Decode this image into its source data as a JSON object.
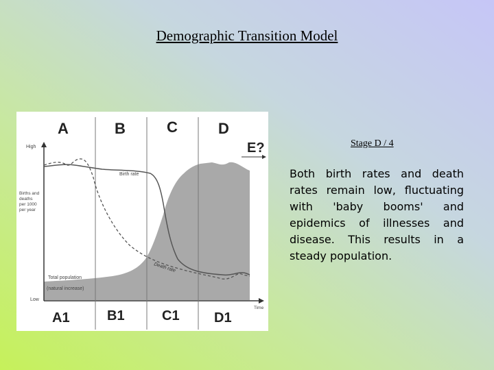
{
  "slide": {
    "title": "Demographic Transition Model",
    "stage_label": "Stage D / 4",
    "description": "Both birth rates and death rates remain low, fluctuating with 'baby booms' and epidemics of illnesses and disease. This results in a steady population."
  },
  "diagram": {
    "stages_top": [
      "A",
      "B",
      "C",
      "D"
    ],
    "stage_question": "E?",
    "stages_bottom": [
      "A1",
      "B1",
      "C1",
      "D1"
    ],
    "y_high": "High",
    "y_low": "Low",
    "y_axis_label": [
      "Births and",
      "deaths",
      "per 1000",
      "per year"
    ],
    "x_axis_label": "Time",
    "birth_rate_label": "Birth rate",
    "death_rate_label": "Death rate",
    "total_population_label": "Total population",
    "natural_increase_label": "(natural increase)",
    "colors": {
      "population_fill": "#a9a9a9",
      "line": "#555555",
      "divider": "#777777"
    }
  }
}
